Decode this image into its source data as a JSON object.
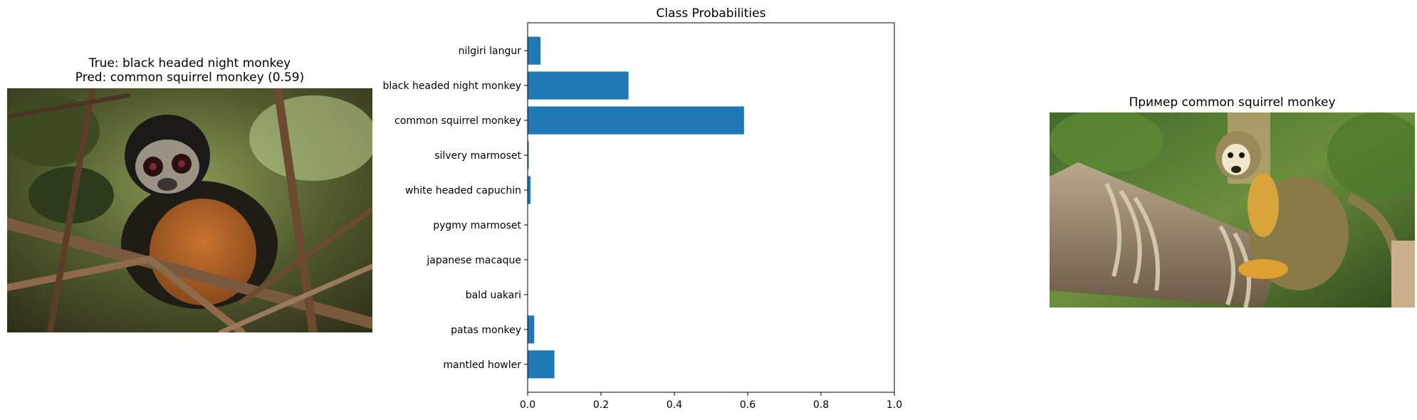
{
  "left_panel": {
    "title_line1": "True: black headed night monkey",
    "title_line2": "Pred: common squirrel monkey (0.59)",
    "photo_subject": "night monkey on branches"
  },
  "right_panel": {
    "title": "Пример common squirrel monkey",
    "photo_subject": "squirrel monkey on rope-tied log"
  },
  "colors": {
    "bar": "#1f77b4",
    "axis": "#000000"
  },
  "chart_data": {
    "type": "bar",
    "orientation": "horizontal",
    "title": "Class Probabilities",
    "categories": [
      "nilgiri langur",
      "black headed night monkey",
      "common squirrel monkey",
      "silvery marmoset",
      "white headed capuchin",
      "pygmy marmoset",
      "japanese macaque",
      "bald uakari",
      "patas monkey",
      "mantled howler"
    ],
    "values": [
      0.035,
      0.275,
      0.59,
      0.003,
      0.008,
      0.0,
      0.0,
      0.0,
      0.018,
      0.073
    ],
    "xlim": [
      0,
      1.0
    ],
    "xticks": [
      "0.0",
      "0.2",
      "0.4",
      "0.6",
      "0.8",
      "1.0"
    ],
    "grid": false
  }
}
